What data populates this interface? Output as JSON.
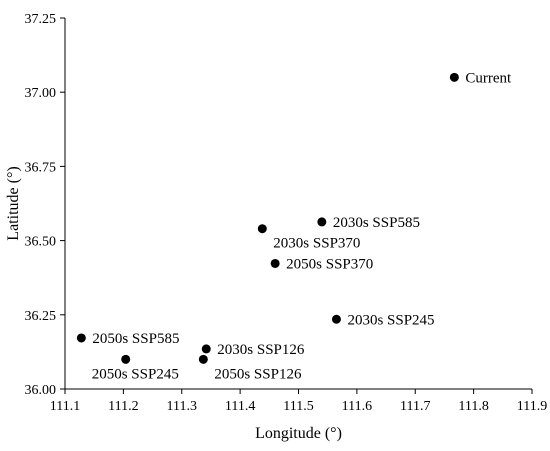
{
  "chart_data": {
    "type": "scatter",
    "title": "",
    "xlabel": "Longitude (°)",
    "ylabel": "Latitude (°)",
    "xlim": [
      111.1,
      111.9
    ],
    "ylim": [
      36.0,
      37.25
    ],
    "xticks": [
      111.1,
      111.2,
      111.3,
      111.4,
      111.5,
      111.6,
      111.7,
      111.8,
      111.9
    ],
    "xtick_labels": [
      "111.1",
      "111.2",
      "111.3",
      "111.4",
      "111.5",
      "111.6",
      "111.7",
      "111.8",
      "111.9"
    ],
    "yticks": [
      36.0,
      36.25,
      36.5,
      36.75,
      37.0,
      37.25
    ],
    "ytick_labels": [
      "36.00",
      "36.25",
      "36.50",
      "36.75",
      "37.00",
      "37.25"
    ],
    "grid": false,
    "legend": "none",
    "marker_color": "#000000",
    "points": [
      {
        "label": "Current",
        "x": 111.767,
        "y": 37.05,
        "label_side": "right"
      },
      {
        "label": "2030s SSP585",
        "x": 111.54,
        "y": 36.563,
        "label_side": "right"
      },
      {
        "label": "2030s SSP370",
        "x": 111.438,
        "y": 36.54,
        "label_side": "below-right"
      },
      {
        "label": "2050s SSP370",
        "x": 111.46,
        "y": 36.423,
        "label_side": "right"
      },
      {
        "label": "2030s SSP245",
        "x": 111.565,
        "y": 36.235,
        "label_side": "right"
      },
      {
        "label": "2050s SSP585",
        "x": 111.128,
        "y": 36.172,
        "label_side": "right"
      },
      {
        "label": "2030s SSP126",
        "x": 111.342,
        "y": 36.135,
        "label_side": "right"
      },
      {
        "label": "2050s SSP245",
        "x": 111.204,
        "y": 36.1,
        "label_side": "below"
      },
      {
        "label": "2050s SSP126",
        "x": 111.337,
        "y": 36.1,
        "label_side": "below-right"
      }
    ]
  }
}
